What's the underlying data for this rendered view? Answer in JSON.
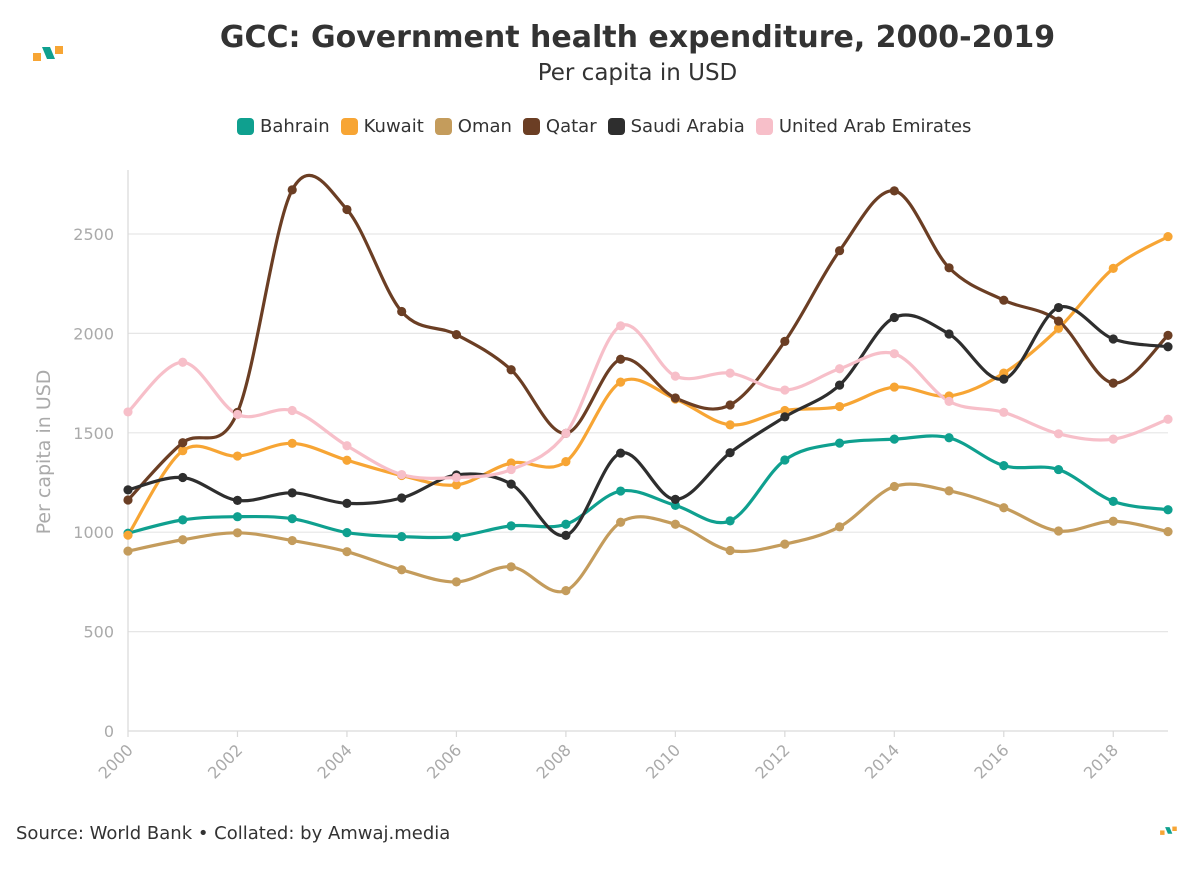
{
  "chart_data": {
    "type": "line",
    "title": "GCC: Government health expenditure, 2000-2019",
    "subtitle": "Per capita in USD",
    "xlabel": "",
    "ylabel": "Per capita in USD",
    "ylim": [
      0,
      2800
    ],
    "xlim": [
      2000,
      2019
    ],
    "yticks": [
      0,
      500,
      1000,
      1500,
      2000,
      2500
    ],
    "xticks": [
      2000,
      2002,
      2004,
      2006,
      2008,
      2010,
      2012,
      2014,
      2016,
      2018
    ],
    "grid": true,
    "legend_position": "top",
    "x": [
      2000,
      2001,
      2002,
      2003,
      2004,
      2005,
      2006,
      2007,
      2008,
      2009,
      2010,
      2011,
      2012,
      2013,
      2014,
      2015,
      2016,
      2017,
      2018,
      2019
    ],
    "series": [
      {
        "name": "Bahrain",
        "color": "#0fa08f",
        "values": [
          995,
          1062,
          1078,
          1068,
          998,
          978,
          978,
          1032,
          1040,
          1207,
          1135,
          1057,
          1363,
          1448,
          1468,
          1475,
          1335,
          1315,
          1155,
          1113
        ]
      },
      {
        "name": "Kuwait",
        "color": "#f7a534",
        "values": [
          985,
          1410,
          1383,
          1447,
          1362,
          1285,
          1238,
          1348,
          1355,
          1755,
          1670,
          1540,
          1612,
          1632,
          1730,
          1685,
          1800,
          2025,
          2327,
          2487
        ]
      },
      {
        "name": "Oman",
        "color": "#c49c5c",
        "values": [
          905,
          962,
          997,
          958,
          902,
          811,
          750,
          826,
          706,
          1050,
          1040,
          908,
          940,
          1027,
          1230,
          1208,
          1123,
          1006,
          1055,
          1003
        ]
      },
      {
        "name": "Qatar",
        "color": "#6b3e24",
        "values": [
          1162,
          1450,
          1603,
          2722,
          2623,
          2110,
          1994,
          1817,
          1497,
          1870,
          1675,
          1640,
          1960,
          2416,
          2717,
          2330,
          2167,
          2062,
          1750,
          1990
        ]
      },
      {
        "name": "Saudi Arabia",
        "color": "#2e2e2e",
        "values": [
          1213,
          1275,
          1160,
          1198,
          1145,
          1172,
          1288,
          1242,
          984,
          1398,
          1165,
          1400,
          1580,
          1740,
          2080,
          1997,
          1770,
          2130,
          1972,
          1933
        ]
      },
      {
        "name": "United Arab Emirates",
        "color": "#f7bfc9",
        "values": [
          1605,
          1855,
          1592,
          1612,
          1435,
          1290,
          1275,
          1315,
          1497,
          2038,
          1785,
          1800,
          1715,
          1822,
          1898,
          1658,
          1603,
          1495,
          1468,
          1568
        ]
      }
    ]
  },
  "legend": {
    "items": [
      "Bahrain",
      "Kuwait",
      "Oman",
      "Qatar",
      "Saudi Arabia",
      "United Arab Emirates"
    ],
    "colors": [
      "#0fa08f",
      "#f7a534",
      "#c49c5c",
      "#6b3e24",
      "#2e2e2e",
      "#f7bfc9"
    ]
  },
  "footer": {
    "source": "Source: World Bank • Collated: by Amwaj.media"
  },
  "brand": {
    "logo_icon": "amwaj-logo-icon",
    "accent_orange": "#f7a534",
    "accent_teal": "#0fa08f"
  }
}
